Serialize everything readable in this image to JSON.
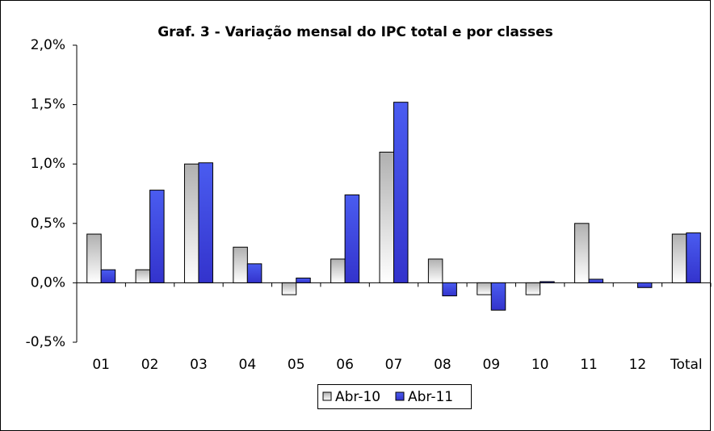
{
  "chart_data": {
    "type": "bar",
    "title": "Graf. 3 - Variação mensal do IPC total e por classes",
    "categories": [
      "01",
      "02",
      "03",
      "04",
      "05",
      "06",
      "07",
      "08",
      "09",
      "10",
      "11",
      "12",
      "Total"
    ],
    "series": [
      {
        "name": "Abr-10",
        "color": "#b0b0b0",
        "values": [
          0.41,
          0.11,
          1.0,
          0.3,
          -0.1,
          0.2,
          1.1,
          0.2,
          -0.1,
          -0.1,
          0.5,
          0,
          0.41
        ]
      },
      {
        "name": "Abr-11",
        "color": "#3333cc",
        "values": [
          0.11,
          0.78,
          1.01,
          0.16,
          0.04,
          0.74,
          1.52,
          -0.11,
          -0.23,
          0.01,
          0.03,
          -0.04,
          0.42
        ]
      }
    ],
    "ylim": [
      -0.5,
      2.0
    ],
    "yticks": [
      {
        "value": -0.5,
        "label": "-0,5%"
      },
      {
        "value": 0,
        "label": "0,0%"
      },
      {
        "value": 0.5,
        "label": "0,5%"
      },
      {
        "value": 1.0,
        "label": "1,0%"
      },
      {
        "value": 1.5,
        "label": "1,5%"
      },
      {
        "value": 2.0,
        "label": "2,0%"
      }
    ],
    "legend": "bottom"
  }
}
